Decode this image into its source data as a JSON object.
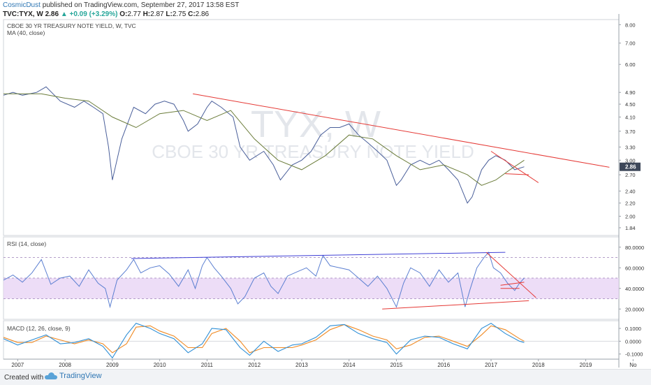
{
  "header": {
    "author": "CosmicDust",
    "published_text": "published on TradingView.com, September 27, 2017 13:58 EST",
    "symbol_line": "TVC:TYX, W",
    "last": "2.86",
    "change_arrow": "▲",
    "change": "+0.09 (+3.29%)",
    "o_label": "O:",
    "o_value": "2.77",
    "h_label": "H:",
    "h_value": "2.87",
    "l_label": "L:",
    "l_value": "2.75",
    "c_label": "C:",
    "c_value": "2.86"
  },
  "footer": {
    "created_with": "Created with",
    "brand": "TradingView",
    "brand_icon": "tradingview-cloud-icon"
  },
  "colors": {
    "price_line": "#4a5f9a",
    "ma_line": "#6b7c3a",
    "trend_red": "#e53935",
    "trend_blue": "#3f3fd6",
    "rsi_line": "#5b7fd1",
    "rsi_band": "#e9d5f5",
    "macd_line": "#2f8fd6",
    "signal_line": "#f08a24",
    "last_badge": "#3d4759"
  },
  "chart_data": [
    {
      "type": "line",
      "pane": "price",
      "title": "CBOE 30 YR TREASURY NOTE YIELD, W, TVC",
      "indicator_label": "MA (40, close)",
      "watermark_symbol": "TYX, W",
      "watermark_name": "CBOE 30 YR TREASURY NOTE YIELD",
      "y_scale": "log",
      "ylim": [
        1.74,
        8.3
      ],
      "yticks": [
        "8.00",
        "7.00",
        "6.00",
        "4.90",
        "4.50",
        "4.10",
        "3.70",
        "3.30",
        "3.00",
        "2.70",
        "2.40",
        "2.20",
        "2.00",
        "1.84"
      ],
      "last_value_label": "2.86",
      "xlim": [
        2006.7,
        2019.7
      ],
      "series": [
        {
          "kind": "price",
          "x": [
            2006.7,
            2006.9,
            2007.1,
            2007.4,
            2007.6,
            2007.9,
            2008.2,
            2008.4,
            2008.6,
            2008.8,
            2008.92,
            2009.0,
            2009.2,
            2009.45,
            2009.7,
            2009.9,
            2010.1,
            2010.3,
            2010.5,
            2010.6,
            2010.8,
            2011.0,
            2011.1,
            2011.3,
            2011.55,
            2011.7,
            2011.9,
            2012.2,
            2012.4,
            2012.55,
            2012.8,
            2013.0,
            2013.2,
            2013.4,
            2013.6,
            2013.8,
            2014.0,
            2014.2,
            2014.4,
            2014.6,
            2014.8,
            2015.0,
            2015.1,
            2015.3,
            2015.5,
            2015.7,
            2015.9,
            2016.1,
            2016.3,
            2016.5,
            2016.6,
            2016.8,
            2016.95,
            2017.1,
            2017.3,
            2017.5,
            2017.7
          ],
          "y": [
            4.8,
            4.9,
            4.8,
            4.9,
            5.1,
            4.6,
            4.4,
            4.6,
            4.4,
            4.2,
            3.3,
            2.6,
            3.5,
            4.4,
            4.2,
            4.5,
            4.6,
            4.5,
            4.0,
            3.7,
            3.9,
            4.4,
            4.6,
            4.4,
            4.1,
            3.3,
            3.0,
            3.2,
            2.9,
            2.6,
            2.9,
            3.0,
            3.2,
            3.6,
            3.8,
            3.8,
            3.9,
            3.6,
            3.4,
            3.2,
            3.0,
            2.5,
            2.6,
            2.9,
            3.0,
            2.9,
            3.0,
            2.8,
            2.6,
            2.2,
            2.3,
            2.8,
            3.0,
            3.1,
            3.0,
            2.8,
            2.86
          ]
        },
        {
          "kind": "moving_average",
          "x": [
            2006.7,
            2007.5,
            2008.0,
            2008.5,
            2009.0,
            2009.5,
            2010.0,
            2010.5,
            2011.0,
            2011.5,
            2012.0,
            2012.5,
            2013.0,
            2013.5,
            2014.0,
            2014.5,
            2015.0,
            2015.5,
            2016.0,
            2016.5,
            2016.8,
            2017.1,
            2017.4,
            2017.7
          ],
          "y": [
            4.85,
            4.85,
            4.7,
            4.6,
            4.1,
            3.8,
            4.2,
            4.3,
            4.0,
            4.3,
            3.5,
            3.0,
            2.8,
            3.1,
            3.6,
            3.5,
            3.1,
            2.8,
            2.9,
            2.7,
            2.5,
            2.6,
            2.8,
            3.0
          ]
        }
      ],
      "trendlines": [
        {
          "x": [
            2010.7,
            2019.5
          ],
          "y": [
            4.85,
            2.85
          ]
        },
        {
          "x": [
            2017.0,
            2018.0
          ],
          "y": [
            3.2,
            2.55
          ]
        },
        {
          "x": [
            2017.3,
            2017.8
          ],
          "y": [
            2.72,
            2.7
          ]
        }
      ]
    },
    {
      "type": "line",
      "pane": "rsi",
      "indicator_label": "RSI (14, close)",
      "ylim": [
        10,
        90
      ],
      "yticks": [
        "80.0000",
        "60.0000",
        "40.0000",
        "20.0000"
      ],
      "band": [
        30,
        50
      ],
      "levels": [
        30,
        50,
        70
      ],
      "series": [
        {
          "kind": "rsi",
          "x": [
            2006.7,
            2006.9,
            2007.1,
            2007.3,
            2007.5,
            2007.7,
            2007.9,
            2008.1,
            2008.3,
            2008.5,
            2008.7,
            2008.85,
            2008.95,
            2009.1,
            2009.3,
            2009.45,
            2009.6,
            2009.8,
            2010.0,
            2010.2,
            2010.4,
            2010.6,
            2010.75,
            2010.9,
            2011.0,
            2011.15,
            2011.3,
            2011.5,
            2011.65,
            2011.8,
            2012.0,
            2012.2,
            2012.35,
            2012.5,
            2012.7,
            2012.9,
            2013.1,
            2013.3,
            2013.45,
            2013.6,
            2013.8,
            2014.0,
            2014.2,
            2014.4,
            2014.6,
            2014.8,
            2015.0,
            2015.15,
            2015.3,
            2015.5,
            2015.7,
            2015.9,
            2016.1,
            2016.3,
            2016.45,
            2016.55,
            2016.7,
            2016.85,
            2016.95,
            2017.05,
            2017.2,
            2017.35,
            2017.5,
            2017.6,
            2017.7
          ],
          "y": [
            48,
            53,
            46,
            55,
            68,
            44,
            50,
            52,
            42,
            58,
            45,
            40,
            22,
            48,
            58,
            68,
            55,
            60,
            62,
            54,
            42,
            58,
            40,
            62,
            70,
            60,
            52,
            40,
            25,
            32,
            50,
            55,
            42,
            35,
            52,
            56,
            60,
            52,
            72,
            62,
            60,
            58,
            50,
            42,
            52,
            40,
            22,
            45,
            60,
            55,
            42,
            58,
            46,
            55,
            22,
            38,
            60,
            70,
            75,
            60,
            55,
            45,
            38,
            45,
            50
          ]
        }
      ],
      "trendlines": [
        {
          "x": [
            2009.4,
            2017.3
          ],
          "y": [
            69,
            75
          ]
        },
        {
          "x": [
            2014.7,
            2017.8
          ],
          "y": [
            20,
            28
          ]
        },
        {
          "x": [
            2016.9,
            2017.95
          ],
          "y": [
            75,
            31
          ]
        },
        {
          "x": [
            2017.2,
            2017.7
          ],
          "y": [
            43,
            46
          ]
        },
        {
          "x": [
            2017.2,
            2017.6
          ],
          "y": [
            40,
            40
          ]
        }
      ]
    },
    {
      "type": "line",
      "pane": "macd",
      "indicator_label": "MACD (12, 26, close, 9)",
      "ylim": [
        -0.14,
        0.16
      ],
      "yticks": [
        "0.1000",
        "0.0000",
        "-0.1000"
      ],
      "x_ticks": [
        "2007",
        "2008",
        "2009",
        "2010",
        "2011",
        "2012",
        "2013",
        "2014",
        "2015",
        "2016",
        "2017",
        "2018",
        "2019",
        "No"
      ],
      "series": [
        {
          "kind": "macd",
          "x": [
            2006.7,
            2007.0,
            2007.3,
            2007.6,
            2007.9,
            2008.2,
            2008.5,
            2008.8,
            2009.0,
            2009.3,
            2009.5,
            2009.8,
            2010.0,
            2010.3,
            2010.6,
            2010.9,
            2011.1,
            2011.4,
            2011.7,
            2011.9,
            2012.2,
            2012.5,
            2012.8,
            2013.0,
            2013.3,
            2013.6,
            2013.9,
            2014.2,
            2014.5,
            2014.8,
            2015.0,
            2015.3,
            2015.6,
            2015.9,
            2016.2,
            2016.5,
            2016.8,
            2017.0,
            2017.3,
            2017.6,
            2017.7
          ],
          "y": [
            0.02,
            -0.03,
            0.01,
            0.05,
            -0.02,
            -0.01,
            0.02,
            -0.04,
            -0.13,
            0.05,
            0.14,
            0.1,
            0.06,
            0.02,
            -0.09,
            -0.02,
            0.1,
            0.09,
            -0.05,
            -0.11,
            0.0,
            -0.08,
            -0.03,
            -0.02,
            0.03,
            0.12,
            0.13,
            0.06,
            0.02,
            -0.01,
            -0.1,
            0.01,
            0.04,
            0.03,
            -0.02,
            -0.06,
            0.1,
            0.14,
            0.06,
            0.0,
            -0.01
          ]
        },
        {
          "kind": "signal",
          "x": [
            2006.7,
            2007.0,
            2007.3,
            2007.6,
            2007.9,
            2008.2,
            2008.5,
            2008.8,
            2009.0,
            2009.3,
            2009.5,
            2009.8,
            2010.0,
            2010.3,
            2010.6,
            2010.9,
            2011.1,
            2011.4,
            2011.7,
            2011.9,
            2012.2,
            2012.5,
            2012.8,
            2013.0,
            2013.3,
            2013.6,
            2013.9,
            2014.2,
            2014.5,
            2014.8,
            2015.0,
            2015.3,
            2015.6,
            2015.9,
            2016.2,
            2016.5,
            2016.8,
            2017.0,
            2017.3,
            2017.6,
            2017.7
          ],
          "y": [
            0.03,
            -0.01,
            -0.01,
            0.04,
            0.01,
            -0.02,
            0.01,
            -0.02,
            -0.09,
            -0.02,
            0.11,
            0.12,
            0.08,
            0.04,
            -0.05,
            -0.05,
            0.06,
            0.1,
            0.0,
            -0.09,
            -0.05,
            -0.05,
            -0.05,
            -0.03,
            0.01,
            0.09,
            0.13,
            0.09,
            0.04,
            0.01,
            -0.06,
            -0.03,
            0.03,
            0.04,
            0.0,
            -0.04,
            0.05,
            0.12,
            0.09,
            0.02,
            0.0
          ]
        }
      ]
    }
  ]
}
